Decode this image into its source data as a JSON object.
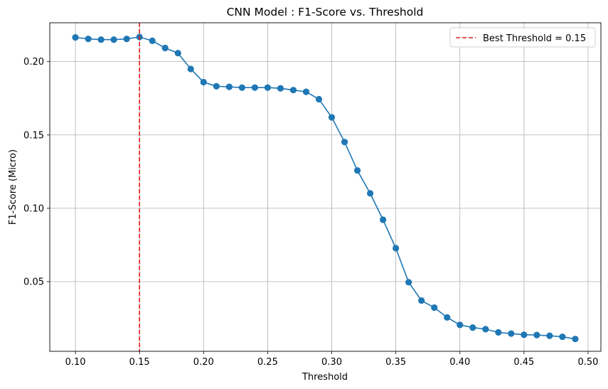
{
  "chart_data": {
    "type": "line",
    "title": "CNN Model : F1-Score vs. Threshold",
    "xlabel": "Threshold",
    "ylabel": "F1-Score (Micro)",
    "xlim": [
      0.08,
      0.51
    ],
    "ylim": [
      0.0025,
      0.2265
    ],
    "xticks": [
      0.1,
      0.15,
      0.2,
      0.25,
      0.3,
      0.35,
      0.4,
      0.45,
      0.5
    ],
    "xtick_labels": [
      "0.10",
      "0.15",
      "0.20",
      "0.25",
      "0.30",
      "0.35",
      "0.40",
      "0.45",
      "0.50"
    ],
    "yticks": [
      0.05,
      0.1,
      0.15,
      0.2
    ],
    "ytick_labels": [
      "0.05",
      "0.10",
      "0.15",
      "0.20"
    ],
    "grid": true,
    "legend_position": "top-right",
    "series": [
      {
        "color": "#1f77b4",
        "marker": "circle",
        "x": [
          0.1,
          0.11,
          0.12,
          0.13,
          0.14,
          0.15,
          0.16,
          0.17,
          0.18,
          0.19,
          0.2,
          0.21,
          0.22,
          0.23,
          0.24,
          0.25,
          0.26,
          0.27,
          0.28,
          0.29,
          0.3,
          0.31,
          0.32,
          0.33,
          0.34,
          0.35,
          0.36,
          0.37,
          0.38,
          0.39,
          0.4,
          0.41,
          0.42,
          0.43,
          0.44,
          0.45,
          0.46,
          0.47,
          0.48,
          0.49
        ],
        "y": [
          0.2165,
          0.2155,
          0.215,
          0.215,
          0.2155,
          0.2168,
          0.2142,
          0.2093,
          0.2058,
          0.195,
          0.186,
          0.1832,
          0.1828,
          0.1823,
          0.1823,
          0.1823,
          0.1818,
          0.1806,
          0.1794,
          0.1744,
          0.162,
          0.1452,
          0.1258,
          0.1102,
          0.0922,
          0.0728,
          0.0496,
          0.0371,
          0.0323,
          0.0256,
          0.0205,
          0.0187,
          0.0176,
          0.0154,
          0.0146,
          0.0138,
          0.0136,
          0.0131,
          0.0124,
          0.0109
        ]
      }
    ],
    "annotations": [
      {
        "type": "vline",
        "x": 0.15,
        "color": "#e41a1c",
        "style": "dashed",
        "label": "Best Threshold = 0.15"
      }
    ]
  }
}
